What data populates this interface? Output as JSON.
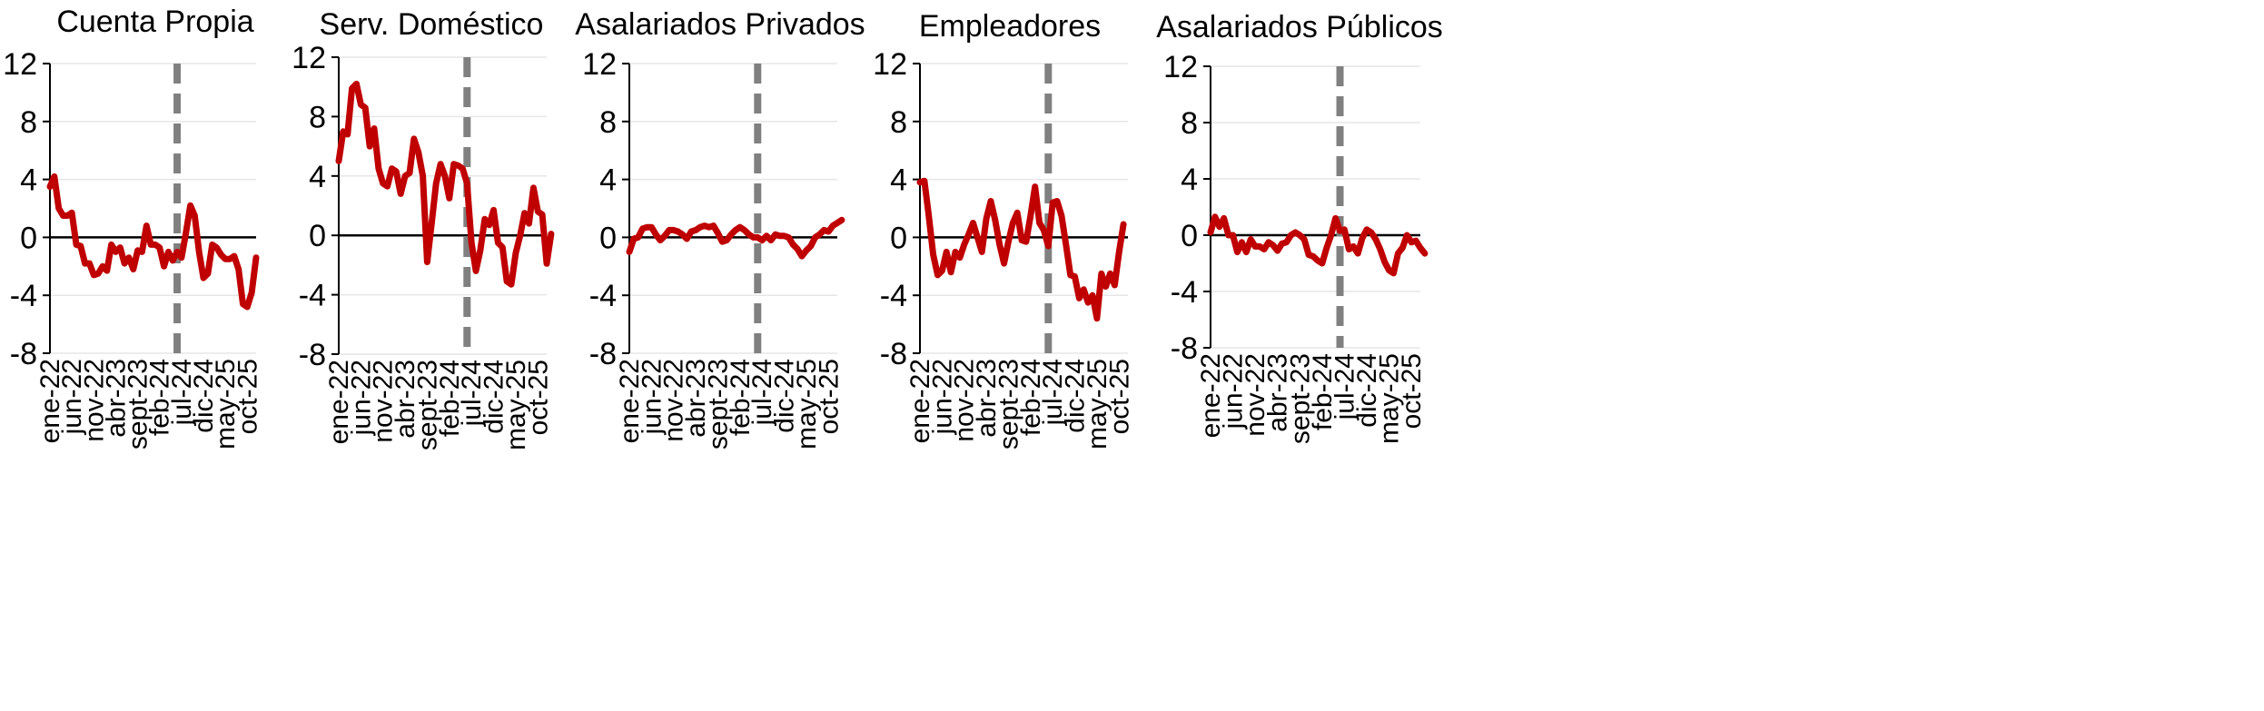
{
  "chart_data": [
    {
      "type": "line",
      "title": "Cuenta Propia",
      "yticks": [
        12,
        8,
        4,
        0,
        -4,
        -8
      ],
      "ylim": [
        -8,
        12
      ],
      "xlabels": [
        "ene-22",
        "jun-22",
        "nov-22",
        "abr-23",
        "sept-23",
        "feb-24",
        "jul-24",
        "dic-24",
        "may-25",
        "oct-25"
      ],
      "xlabel_positions": [
        0,
        5,
        10,
        15,
        20,
        25,
        30,
        35,
        40,
        45
      ],
      "vline_at": 29,
      "line_color": "#c00000",
      "values": [
        3.5,
        4.2,
        2.0,
        1.5,
        1.5,
        1.7,
        -0.5,
        -0.6,
        -1.8,
        -1.8,
        -2.6,
        -2.5,
        -2.0,
        -2.3,
        -0.5,
        -1.0,
        -0.7,
        -1.8,
        -1.4,
        -2.2,
        -0.9,
        -1.0,
        0.8,
        -0.5,
        -0.5,
        -0.7,
        -2.0,
        -1.0,
        -1.6,
        -1.0,
        -1.4,
        0.3,
        2.2,
        1.5,
        -1.0,
        -2.8,
        -2.5,
        -0.5,
        -0.7,
        -1.2,
        -1.5,
        -1.5,
        -1.3,
        -2.2,
        -4.6,
        -4.8,
        -3.8,
        -1.4
      ]
    },
    {
      "type": "line",
      "title": "Serv. Doméstico",
      "yticks": [
        12,
        8,
        4,
        0,
        -4,
        -8
      ],
      "ylim": [
        -8,
        12
      ],
      "xlabels": [
        "ene-22",
        "jun-22",
        "nov-22",
        "abr-23",
        "sept-23",
        "feb-24",
        "jul-24",
        "dic-24",
        "may-25",
        "oct-25"
      ],
      "xlabel_positions": [
        0,
        5,
        10,
        15,
        20,
        25,
        30,
        35,
        40,
        45
      ],
      "vline_at": 29,
      "line_color": "#c00000",
      "values": [
        5.0,
        7.0,
        6.8,
        9.9,
        10.2,
        8.8,
        8.6,
        6.0,
        7.2,
        4.5,
        3.5,
        3.3,
        4.5,
        4.3,
        2.8,
        4.0,
        4.2,
        6.5,
        5.6,
        4.0,
        -1.8,
        0.8,
        3.5,
        4.8,
        4.0,
        2.5,
        4.8,
        4.7,
        4.5,
        3.5,
        -0.5,
        -2.4,
        -1.0,
        1.1,
        0.7,
        1.7,
        -0.5,
        -0.8,
        -3.1,
        -3.3,
        -1.2,
        0.0,
        1.5,
        0.8,
        3.2,
        1.6,
        1.4,
        -1.9,
        0.1
      ]
    },
    {
      "type": "line",
      "title": "Asalariados Privados",
      "yticks": [
        12,
        8,
        4,
        0,
        -4,
        -8
      ],
      "ylim": [
        -8,
        12
      ],
      "xlabels": [
        "ene-22",
        "jun-22",
        "nov-22",
        "abr-23",
        "sept-23",
        "feb-24",
        "jul-24",
        "dic-24",
        "may-25",
        "oct-25"
      ],
      "xlabel_positions": [
        0,
        5,
        10,
        15,
        20,
        25,
        30,
        35,
        40,
        45
      ],
      "vline_at": 29,
      "line_color": "#c00000",
      "values": [
        -1.0,
        -0.1,
        0.0,
        0.6,
        0.7,
        0.7,
        0.2,
        -0.2,
        0.1,
        0.5,
        0.5,
        0.4,
        0.2,
        -0.1,
        0.4,
        0.5,
        0.7,
        0.8,
        0.7,
        0.8,
        0.3,
        -0.3,
        -0.2,
        0.2,
        0.5,
        0.7,
        0.5,
        0.2,
        0.0,
        0.0,
        -0.2,
        0.1,
        -0.2,
        0.2,
        0.1,
        0.1,
        0.0,
        -0.5,
        -0.8,
        -1.3,
        -0.9,
        -0.6,
        0.0,
        0.2,
        0.5,
        0.4,
        0.8,
        1.0,
        1.2
      ]
    },
    {
      "type": "line",
      "title": "Empleadores",
      "yticks": [
        12,
        8,
        4,
        0,
        -4,
        -8
      ],
      "ylim": [
        -8,
        12
      ],
      "xlabels": [
        "ene-22",
        "jun-22",
        "nov-22",
        "abr-23",
        "sept-23",
        "feb-24",
        "jul-24",
        "dic-24",
        "may-25",
        "oct-25"
      ],
      "xlabel_positions": [
        0,
        5,
        10,
        15,
        20,
        25,
        30,
        35,
        40,
        45
      ],
      "vline_at": 29,
      "line_color": "#c00000",
      "values": [
        3.8,
        3.9,
        1.5,
        -1.2,
        -2.6,
        -2.3,
        -1.0,
        -2.4,
        -1.0,
        -1.4,
        -0.5,
        0.2,
        1.0,
        0.0,
        -1.0,
        1.3,
        2.5,
        1.2,
        -0.5,
        -1.8,
        -0.3,
        1.0,
        1.7,
        -0.2,
        -0.3,
        1.5,
        3.5,
        1.0,
        0.5,
        -0.6,
        2.4,
        2.5,
        1.5,
        -0.5,
        -2.6,
        -2.7,
        -4.2,
        -3.6,
        -4.5,
        -4.0,
        -5.6,
        -2.5,
        -3.4,
        -2.5,
        -3.3,
        -1.0,
        0.9
      ]
    },
    {
      "type": "line",
      "title": "Asalariados Públicos",
      "yticks": [
        12,
        8,
        4,
        0,
        -4,
        -8
      ],
      "ylim": [
        -8,
        12
      ],
      "xlabels": [
        "ene-22",
        "jun-22",
        "nov-22",
        "abr-23",
        "sept-23",
        "feb-24",
        "jul-24",
        "dic-24",
        "may-25",
        "oct-25"
      ],
      "xlabel_positions": [
        0,
        5,
        10,
        15,
        20,
        25,
        30,
        35,
        40,
        45
      ],
      "vline_at": 29,
      "line_color": "#c00000",
      "values": [
        0.2,
        1.3,
        0.6,
        1.2,
        0.0,
        0.0,
        -1.2,
        -0.5,
        -1.2,
        -0.3,
        -0.8,
        -0.8,
        -1.0,
        -0.5,
        -0.7,
        -1.1,
        -0.6,
        -0.5,
        0.0,
        0.2,
        0.0,
        -0.3,
        -1.4,
        -1.5,
        -1.8,
        -2.0,
        -0.9,
        0.0,
        1.2,
        0.3,
        0.4,
        -1.0,
        -0.8,
        -1.3,
        -0.2,
        0.4,
        0.2,
        -0.3,
        -1.0,
        -1.9,
        -2.5,
        -2.7,
        -1.3,
        -0.9,
        0.0,
        -0.5,
        -0.4,
        -0.9,
        -1.3
      ]
    }
  ]
}
